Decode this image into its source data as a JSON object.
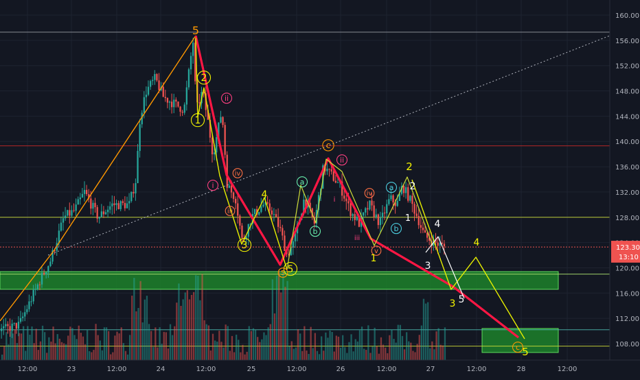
{
  "chart_data": {
    "type": "candlestick",
    "title": "",
    "ylim": [
      106,
      161
    ],
    "x_tick_labels": [
      "12:00",
      "23",
      "12:00",
      "24",
      "12:00",
      "25",
      "12:00",
      "26",
      "12:00",
      "27",
      "12:00",
      "28",
      "12:00"
    ],
    "y_tick_labels": [
      "108.00",
      "112.00",
      "116.00",
      "120.00",
      "124.00",
      "128.00",
      "132.00",
      "136.00",
      "140.00",
      "144.00",
      "148.00",
      "152.00",
      "156.00",
      "160.00"
    ],
    "y_tick_values": [
      108,
      112,
      116,
      120,
      124,
      128,
      132,
      136,
      140,
      144,
      148,
      152,
      156,
      160
    ],
    "current_price_label": "123.30",
    "current_price": 123.3,
    "countdown_label": "13:10",
    "countdown_price": 121.8,
    "colors": {
      "background": "#131722",
      "up": "#26a69a",
      "down": "#ef5350",
      "grid": "#1e2330",
      "price_badge": "#ef5350",
      "support_zone": "#1d8a2c",
      "support_zone_border": "#5fdc5f"
    },
    "horizontal_levels": [
      {
        "price": 157.3,
        "color": "#9598a1"
      },
      {
        "price": 139.3,
        "color": "#c62828"
      },
      {
        "price": 128.0,
        "color": "#cddc39"
      },
      {
        "price": 119.0,
        "color": "#aee571"
      },
      {
        "price": 110.2,
        "color": "#4db6ac"
      },
      {
        "price": 107.6,
        "color": "#cddc39"
      }
    ],
    "support_zones": [
      {
        "price_top": 119.4,
        "price_bottom": 116.6
      },
      {
        "price_top": 110.4,
        "price_bottom": 106.6
      }
    ],
    "wave_labels": [
      "5",
      "2",
      "1",
      "ii",
      "i",
      "iii",
      "iv",
      "3",
      "4",
      "5",
      "5",
      "a",
      "b",
      "c",
      "ii",
      "i",
      "iii",
      "iv",
      "v",
      "1",
      "a",
      "b",
      "2",
      "2",
      "1",
      "4",
      "3",
      "4",
      "3",
      "5",
      "5",
      "c"
    ]
  }
}
